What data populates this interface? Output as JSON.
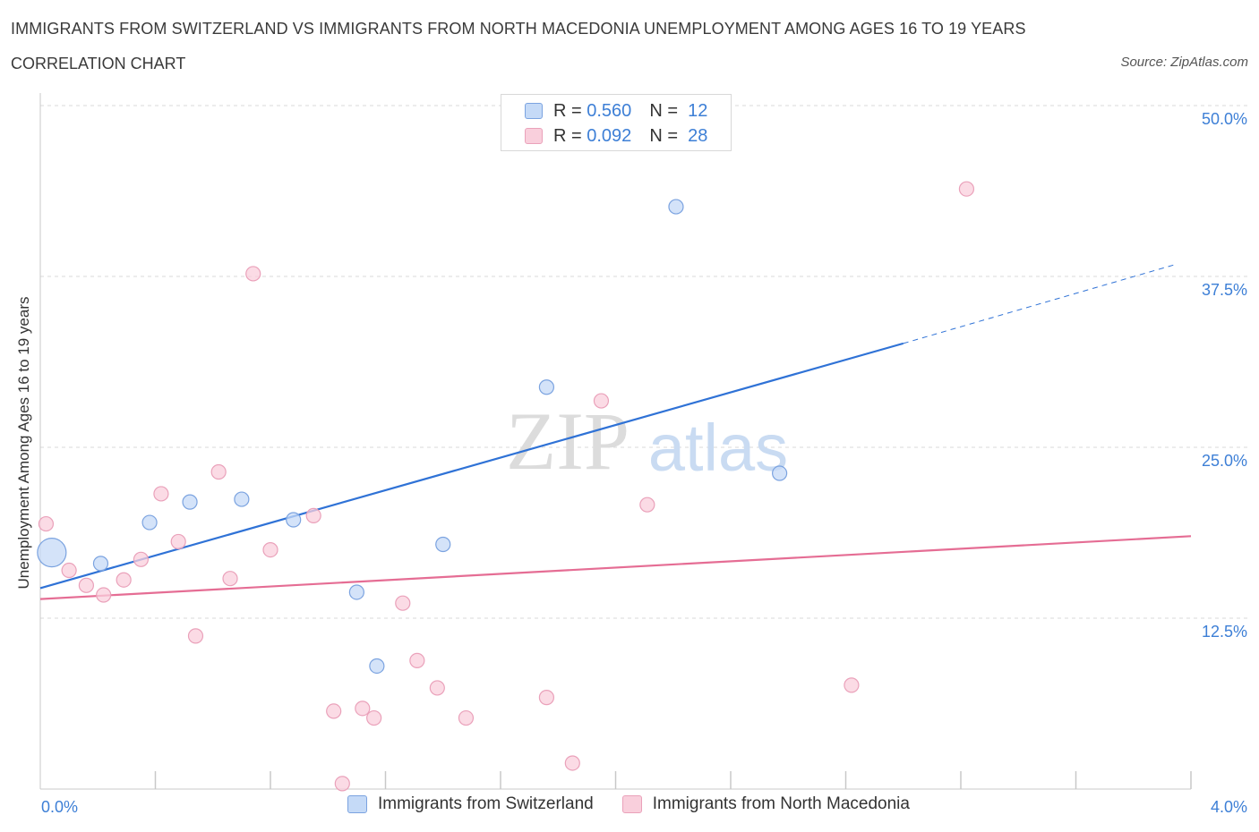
{
  "header": {
    "title": "IMMIGRANTS FROM SWITZERLAND VS IMMIGRANTS FROM NORTH MACEDONIA UNEMPLOYMENT AMONG AGES 16 TO 19 YEARS",
    "subtitle": "CORRELATION CHART",
    "source": "Source: ZipAtlas.com"
  },
  "legend_top": {
    "blue": {
      "r_label": "R =",
      "r_value": "0.560",
      "n_label": "N =",
      "n_value": "12"
    },
    "pink": {
      "r_label": "R =",
      "r_value": "0.092",
      "n_label": "N =",
      "n_value": "28"
    }
  },
  "colors": {
    "blue_fill": "#c5daf7",
    "blue_stroke": "#7ba3e0",
    "blue_line": "#2f72d6",
    "pink_fill": "#f9cfdc",
    "pink_stroke": "#eaa1ba",
    "pink_line": "#e56d94",
    "tick_label": "#3d7fd6",
    "grid": "#d9d9d9"
  },
  "watermark": {
    "zip": "ZIP",
    "atlas": "atlas"
  },
  "chart_data": {
    "type": "scatter",
    "title": "IMMIGRANTS FROM SWITZERLAND VS IMMIGRANTS FROM NORTH MACEDONIA UNEMPLOYMENT AMONG AGES 16 TO 19 YEARS",
    "subtitle": "CORRELATION CHART",
    "xlabel": "",
    "ylabel": "Unemployment Among Ages 16 to 19 years",
    "xlim": [
      0,
      4
    ],
    "ylim": [
      0,
      50
    ],
    "x_tick_labels": [
      "0.0%",
      "4.0%"
    ],
    "y_ticks": [
      12.5,
      25.0,
      37.5,
      50.0
    ],
    "y_tick_labels": [
      "12.5%",
      "25.0%",
      "37.5%",
      "50.0%"
    ],
    "grid": true,
    "series": [
      {
        "name": "Immigrants from Switzerland",
        "color": "blue",
        "points": [
          {
            "x": 0.04,
            "y": 17.3,
            "size": "large"
          },
          {
            "x": 0.21,
            "y": 16.5
          },
          {
            "x": 0.38,
            "y": 19.5
          },
          {
            "x": 0.52,
            "y": 21.0
          },
          {
            "x": 0.7,
            "y": 21.2
          },
          {
            "x": 0.88,
            "y": 19.7
          },
          {
            "x": 1.1,
            "y": 14.4
          },
          {
            "x": 1.17,
            "y": 9.0
          },
          {
            "x": 1.4,
            "y": 17.9
          },
          {
            "x": 1.76,
            "y": 29.4
          },
          {
            "x": 2.21,
            "y": 42.6
          },
          {
            "x": 2.57,
            "y": 23.1
          }
        ],
        "trend": {
          "x0": 0.0,
          "y0": 14.7,
          "x1": 3.0,
          "y1": 32.6,
          "dash_to_x": 3.95,
          "dash_to_y": 38.4
        }
      },
      {
        "name": "Immigrants from North Macedonia",
        "color": "pink",
        "points": [
          {
            "x": 0.02,
            "y": 19.4
          },
          {
            "x": 0.1,
            "y": 16.0
          },
          {
            "x": 0.16,
            "y": 14.9
          },
          {
            "x": 0.22,
            "y": 14.2
          },
          {
            "x": 0.29,
            "y": 15.3
          },
          {
            "x": 0.35,
            "y": 16.8
          },
          {
            "x": 0.42,
            "y": 21.6
          },
          {
            "x": 0.48,
            "y": 18.1
          },
          {
            "x": 0.54,
            "y": 11.2
          },
          {
            "x": 0.62,
            "y": 23.2
          },
          {
            "x": 0.66,
            "y": 15.4
          },
          {
            "x": 0.74,
            "y": 37.7
          },
          {
            "x": 0.8,
            "y": 17.5
          },
          {
            "x": 0.95,
            "y": 20.0
          },
          {
            "x": 1.02,
            "y": 5.7
          },
          {
            "x": 1.05,
            "y": 0.4
          },
          {
            "x": 1.12,
            "y": 5.9
          },
          {
            "x": 1.16,
            "y": 5.2
          },
          {
            "x": 1.26,
            "y": 13.6
          },
          {
            "x": 1.31,
            "y": 9.4
          },
          {
            "x": 1.38,
            "y": 7.4
          },
          {
            "x": 1.48,
            "y": 5.2
          },
          {
            "x": 1.76,
            "y": 6.7
          },
          {
            "x": 1.85,
            "y": 1.9
          },
          {
            "x": 1.95,
            "y": 28.4
          },
          {
            "x": 2.11,
            "y": 20.8
          },
          {
            "x": 2.82,
            "y": 7.6
          },
          {
            "x": 3.22,
            "y": 43.9
          }
        ],
        "trend": {
          "x0": 0.0,
          "y0": 13.9,
          "x1": 4.0,
          "y1": 18.5
        }
      }
    ]
  }
}
